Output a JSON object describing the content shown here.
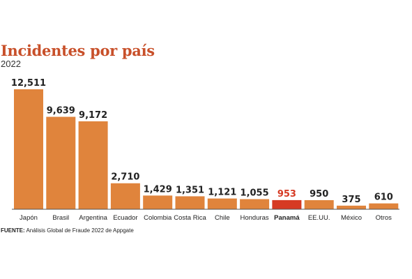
{
  "header": {
    "title": "Incidentes por país",
    "subtitle": "2022"
  },
  "footer": {
    "source_label": "FUENTE:",
    "source_text": "Análisis Global de Fraude 2022 de Appgate"
  },
  "colors": {
    "bar": "#e0843c",
    "highlight": "#d63a23",
    "label": "#222222",
    "highlight_label": "#d63a23"
  },
  "chart_data": {
    "type": "bar",
    "title": "Incidentes por país",
    "subtitle": "2022",
    "categories": [
      "Japón",
      "Brasil",
      "Argentina",
      "Ecuador",
      "Colombia",
      "Costa Rica",
      "Chile",
      "Honduras",
      "Panamá",
      "EE.UU.",
      "México",
      "Otros"
    ],
    "values": [
      12511,
      9639,
      9172,
      2710,
      1429,
      1351,
      1121,
      1055,
      953,
      950,
      375,
      610
    ],
    "value_labels": [
      "12,511",
      "9,639",
      "9,172",
      "2,710",
      "1,429",
      "1,351",
      "1,121",
      "1,055",
      "953",
      "950",
      "375",
      "610"
    ],
    "highlight_category": "Panamá",
    "ylim": [
      0,
      12511
    ],
    "grid": false,
    "legend": "none"
  }
}
